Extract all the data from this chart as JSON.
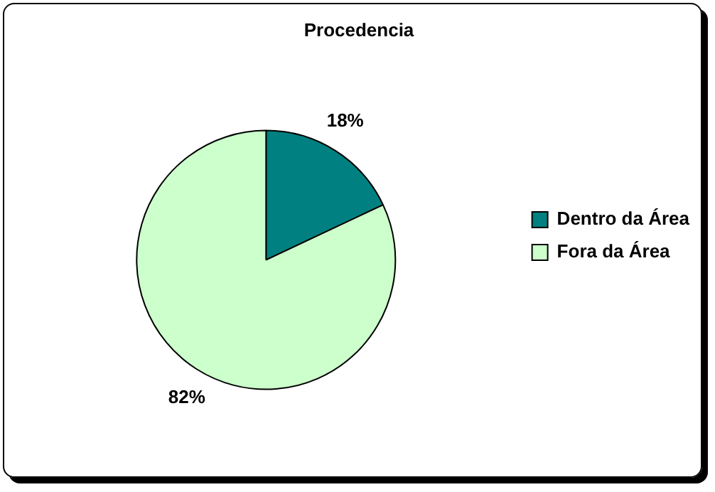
{
  "chart_data": {
    "type": "pie",
    "title": "Procedencia",
    "categories": [
      "Dentro da Área",
      "Fora da Área"
    ],
    "values": [
      18,
      82
    ],
    "colors": [
      "#008080",
      "#ccffcc"
    ],
    "value_labels": [
      "18%",
      "82%"
    ],
    "legend": "right"
  }
}
